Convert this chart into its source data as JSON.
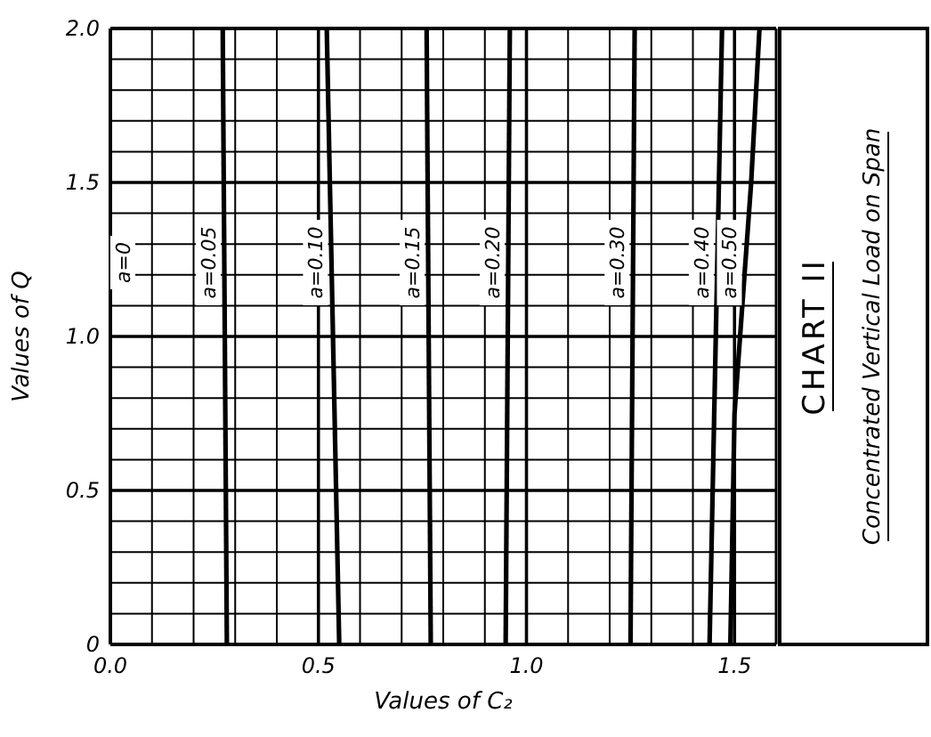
{
  "chart_data": {
    "type": "line",
    "title": "CHART II",
    "subtitle": "Concentrated Vertical Load on Span",
    "xlabel": "Values of C₂",
    "ylabel": "Values of Q",
    "xlim": [
      0,
      1.6
    ],
    "ylim": [
      0,
      2
    ],
    "xticks": [
      {
        "value": 0,
        "label": "0.0"
      },
      {
        "value": 0.1,
        "label": null
      },
      {
        "value": 0.2,
        "label": null
      },
      {
        "value": 0.3,
        "label": null
      },
      {
        "value": 0.4,
        "label": null
      },
      {
        "value": 0.5,
        "label": "0.5"
      },
      {
        "value": 0.6,
        "label": null
      },
      {
        "value": 0.7,
        "label": null
      },
      {
        "value": 0.8,
        "label": null
      },
      {
        "value": 0.9,
        "label": null
      },
      {
        "value": 1,
        "label": "1.0"
      },
      {
        "value": 1.1,
        "label": null
      },
      {
        "value": 1.2,
        "label": null
      },
      {
        "value": 1.3,
        "label": null
      },
      {
        "value": 1.4,
        "label": null
      },
      {
        "value": 1.5,
        "label": "1.5"
      }
    ],
    "yticks": [
      {
        "value": 0,
        "label": "0"
      },
      {
        "value": 0.1,
        "label": null
      },
      {
        "value": 0.2,
        "label": null
      },
      {
        "value": 0.3,
        "label": null
      },
      {
        "value": 0.4,
        "label": null
      },
      {
        "value": 0.5,
        "label": "0.5"
      },
      {
        "value": 0.6,
        "label": null
      },
      {
        "value": 0.7,
        "label": null
      },
      {
        "value": 0.8,
        "label": null
      },
      {
        "value": 0.9,
        "label": null
      },
      {
        "value": 1,
        "label": "1.0"
      },
      {
        "value": 1.1,
        "label": null
      },
      {
        "value": 1.2,
        "label": null
      },
      {
        "value": 1.3,
        "label": null
      },
      {
        "value": 1.4,
        "label": null
      },
      {
        "value": 1.5,
        "label": "1.5"
      },
      {
        "value": 1.6,
        "label": null
      },
      {
        "value": 1.7,
        "label": null
      },
      {
        "value": 1.8,
        "label": null
      },
      {
        "value": 1.9,
        "label": null
      },
      {
        "value": 2,
        "label": "2.0"
      }
    ],
    "grid": true,
    "marker": "none",
    "line_style": "solid",
    "annotations": [
      "a=0"
    ],
    "series": [
      {
        "name": "a=0.05",
        "color": "#000000",
        "x": [
          0.28,
          0.27
        ],
        "values": [
          0,
          2
        ]
      },
      {
        "name": "a=0.10",
        "color": "#000000",
        "x": [
          0.55,
          0.52
        ],
        "values": [
          0,
          2
        ]
      },
      {
        "name": "a=0.15",
        "color": "#000000",
        "x": [
          0.77,
          0.76
        ],
        "values": [
          0,
          2
        ]
      },
      {
        "name": "a=0.20",
        "color": "#000000",
        "x": [
          0.95,
          0.96
        ],
        "values": [
          0,
          2
        ]
      },
      {
        "name": "a=0.30",
        "color": "#000000",
        "x": [
          1.25,
          1.26
        ],
        "values": [
          0,
          2
        ]
      },
      {
        "name": "a=0.40",
        "color": "#000000",
        "x": [
          1.44,
          1.47
        ],
        "values": [
          0,
          2
        ]
      },
      {
        "name": "a=0.50",
        "color": "#000000",
        "x": [
          1.49,
          1.5,
          1.54,
          1.56
        ],
        "values": [
          0,
          0.75,
          1.5,
          2
        ]
      }
    ]
  }
}
